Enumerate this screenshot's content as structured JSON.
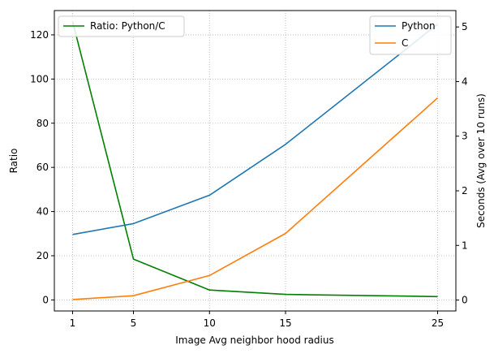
{
  "chart_data": {
    "type": "line",
    "x": [
      1,
      5,
      10,
      15,
      25
    ],
    "xlabel": "Image Avg neighbor hood radius",
    "xlim": [
      -0.2,
      26.2
    ],
    "xticks": [
      1,
      5,
      10,
      15,
      25
    ],
    "left_axis": {
      "label": "Ratio",
      "ylim": [
        -5,
        131
      ],
      "ticks": [
        0,
        20,
        40,
        60,
        80,
        100,
        120
      ]
    },
    "right_axis": {
      "label": "Seconds (Avg over 10 runs)",
      "ylim": [
        -0.2,
        5.3
      ],
      "ticks": [
        0,
        1,
        2,
        3,
        4,
        5
      ]
    },
    "series": [
      {
        "name": "Ratio: Python/C",
        "axis": "left",
        "color": "#008000",
        "values": [
          126,
          18.5,
          4.5,
          2.5,
          1.5
        ]
      },
      {
        "name": "Python",
        "axis": "right",
        "color": "#1f77b4",
        "values": [
          1.2,
          1.4,
          1.92,
          2.85,
          5.05
        ]
      },
      {
        "name": "C",
        "axis": "right",
        "color": "#ff7f0e",
        "values": [
          0.01,
          0.08,
          0.45,
          1.22,
          3.7
        ]
      }
    ],
    "grid": true,
    "legends": [
      {
        "placement": "top-left",
        "entries": [
          "Ratio: Python/C"
        ]
      },
      {
        "placement": "top-right",
        "entries": [
          "Python",
          "C"
        ]
      }
    ]
  }
}
